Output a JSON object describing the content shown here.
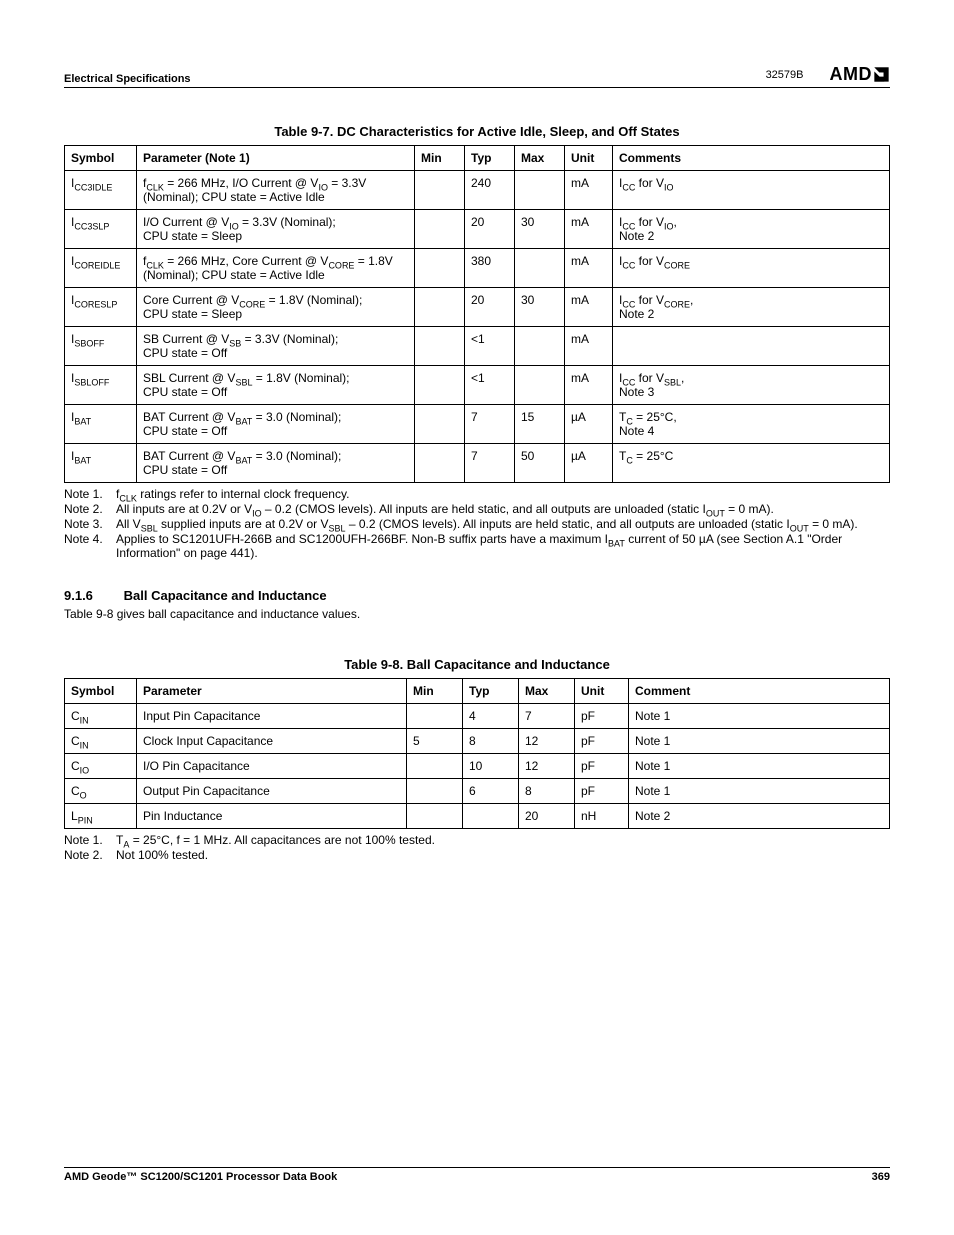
{
  "header": {
    "left": "Electrical Specifications",
    "docnum": "32579B",
    "logo": "AMD"
  },
  "footer": {
    "left": "AMD Geode™ SC1200/SC1201 Processor Data Book",
    "page": "369"
  },
  "table97": {
    "title": "Table 9-7.  DC Characteristics for Active Idle, Sleep, and Off States",
    "head": {
      "sym": "Symbol",
      "par": "Parameter (Note 1)",
      "min": "Min",
      "typ": "Typ",
      "max": "Max",
      "unit": "Unit",
      "com": "Comments"
    },
    "rows": [
      {
        "sym_base": "I",
        "sym_sub": "CC3IDLE",
        "par_html": "f<sub>CLK</sub> = 266 MHz, I/O Current @ V<sub>IO</sub> = 3.3V (Nominal); CPU state = Active Idle",
        "min": "",
        "typ": "240",
        "max": "",
        "unit": "mA",
        "com_html": "I<sub>CC</sub> for V<sub>IO</sub>"
      },
      {
        "sym_base": "I",
        "sym_sub": "CC3SLP",
        "par_html": "I/O Current @ V<sub>IO</sub> = 3.3V (Nominal);<br>CPU state = Sleep",
        "min": "",
        "typ": "20",
        "max": "30",
        "unit": "mA",
        "com_html": "I<sub>CC</sub> for V<sub>IO</sub>,<br>Note 2"
      },
      {
        "sym_base": "I",
        "sym_sub": "COREIDLE",
        "par_html": "f<sub>CLK</sub> = 266 MHz, Core Current @ V<sub>CORE</sub> = 1.8V (Nominal); CPU state = Active Idle",
        "min": "",
        "typ": "380",
        "max": "",
        "unit": "mA",
        "com_html": "I<sub>CC</sub> for V<sub>CORE</sub>"
      },
      {
        "sym_base": "I",
        "sym_sub": "CORESLP",
        "par_html": "Core Current @ V<sub>CORE</sub> = 1.8V (Nominal);<br>CPU state = Sleep",
        "min": "",
        "typ": "20",
        "max": "30",
        "unit": "mA",
        "com_html": "I<sub>CC</sub> for V<sub>CORE</sub>,<br>Note 2"
      },
      {
        "sym_base": "I",
        "sym_sub": "SBOFF",
        "par_html": "SB Current @ V<sub>SB</sub> = 3.3V (Nominal);<br>CPU state = Off",
        "min": "",
        "typ": "<1",
        "max": "",
        "unit": "mA",
        "com_html": ""
      },
      {
        "sym_base": "I",
        "sym_sub": "SBLOFF",
        "par_html": "SBL Current @ V<sub>SBL</sub> = 1.8V (Nominal);<br>CPU state = Off",
        "min": "",
        "typ": "<1",
        "max": "",
        "unit": "mA",
        "com_html": "I<sub>CC</sub> for V<sub>SBL</sub>,<br>Note 3"
      },
      {
        "sym_base": "I",
        "sym_sub": "BAT",
        "par_html": "BAT Current @ V<sub>BAT</sub> = 3.0 (Nominal);<br>CPU state = Off",
        "min": "",
        "typ": "7",
        "max": "15",
        "unit": "µA",
        "com_html": "T<sub>C</sub> = 25°C,<br>Note 4"
      },
      {
        "sym_base": "I",
        "sym_sub": "BAT",
        "par_html": "BAT Current @ V<sub>BAT</sub> = 3.0 (Nominal);<br>CPU state = Off",
        "min": "",
        "typ": "7",
        "max": "50",
        "unit": "µA",
        "com_html": "T<sub>C</sub> = 25°C"
      }
    ],
    "notes": [
      {
        "lbl": "Note 1.",
        "html": "f<sub>CLK</sub> ratings refer to internal clock frequency."
      },
      {
        "lbl": "Note 2.",
        "html": "All inputs are at 0.2V or V<sub>IO</sub> – 0.2 (CMOS levels). All inputs are held static, and all outputs are unloaded (static I<sub>OUT</sub> = 0 mA)."
      },
      {
        "lbl": "Note 3.",
        "html": "All V<sub>SBL</sub> supplied inputs are at 0.2V or V<sub>SBL</sub> – 0.2 (CMOS levels). All inputs are held static, and all outputs are unloaded (static I<sub>OUT</sub> = 0 mA)."
      },
      {
        "lbl": "Note 4.",
        "html": "Applies to SC1201UFH-266B and SC1200UFH-266BF. Non-B suffix parts have a maximum I<sub>BAT</sub> current of 50 µA (see Section A.1 \"Order Information\" on page 441)."
      }
    ]
  },
  "section": {
    "num": "9.1.6",
    "title": "Ball Capacitance and Inductance",
    "body": "Table 9-8 gives ball capacitance and inductance values."
  },
  "table98": {
    "title": "Table 9-8.  Ball Capacitance and Inductance",
    "head": {
      "sym": "Symbol",
      "par": "Parameter",
      "min": "Min",
      "typ": "Typ",
      "max": "Max",
      "unit": "Unit",
      "com": "Comment"
    },
    "rows": [
      {
        "sym_base": "C",
        "sym_sub": "IN",
        "par": "Input Pin Capacitance",
        "min": "",
        "typ": "4",
        "max": "7",
        "unit": "pF",
        "com": "Note 1"
      },
      {
        "sym_base": "C",
        "sym_sub": "IN",
        "par": "Clock Input Capacitance",
        "min": "5",
        "typ": "8",
        "max": "12",
        "unit": "pF",
        "com": "Note 1"
      },
      {
        "sym_base": "C",
        "sym_sub": "IO",
        "par": "I/O Pin Capacitance",
        "min": "",
        "typ": "10",
        "max": "12",
        "unit": "pF",
        "com": "Note 1"
      },
      {
        "sym_base": "C",
        "sym_sub": "O",
        "par": "Output Pin Capacitance",
        "min": "",
        "typ": "6",
        "max": "8",
        "unit": "pF",
        "com": "Note 1"
      },
      {
        "sym_base": "L",
        "sym_sub": "PIN",
        "par": "Pin Inductance",
        "min": "",
        "typ": "",
        "max": "20",
        "unit": "nH",
        "com": "Note 2"
      }
    ],
    "notes": [
      {
        "lbl": "Note 1.",
        "html": "T<sub>A</sub> = 25°C, f = 1 MHz. All capacitances are not 100% tested."
      },
      {
        "lbl": "Note 2.",
        "html": "Not 100% tested."
      }
    ]
  }
}
